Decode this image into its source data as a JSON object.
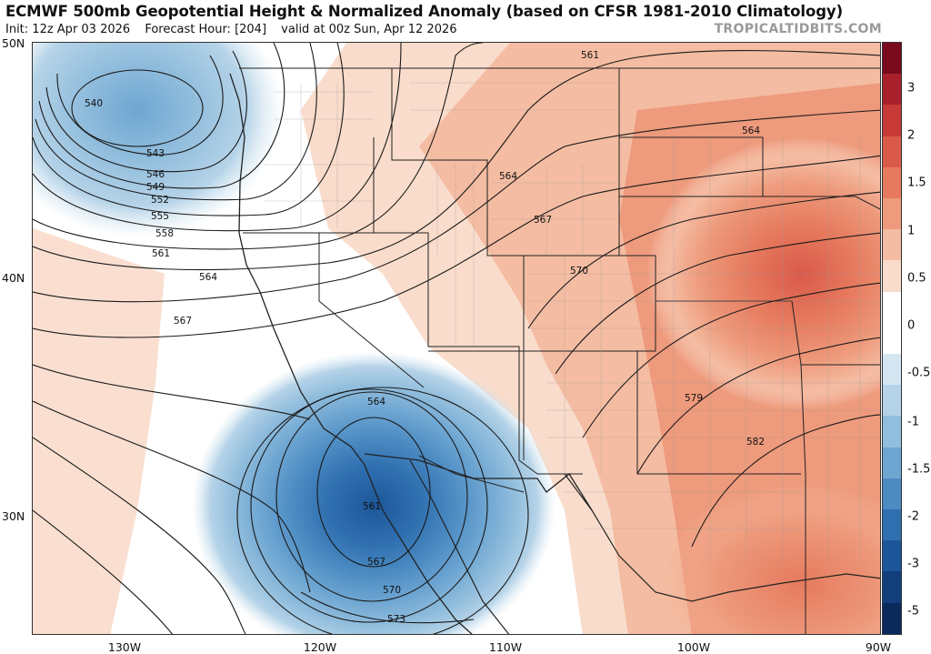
{
  "header": {
    "title": "ECMWF 500mb Geopotential Height & Normalized Anomaly (based on CFSR 1981-2010 Climatology)",
    "init": "Init: 12z Apr 03 2026",
    "forecast_hour": "Forecast Hour: [204]",
    "valid": "valid at 00z Sun, Apr 12 2026",
    "watermark": "TROPICALTIDBITS.COM"
  },
  "axes": {
    "lat_labels": [
      "50N",
      "40N",
      "30N"
    ],
    "lon_labels": [
      "130W",
      "120W",
      "110W",
      "100W",
      "90W"
    ]
  },
  "colorbar": {
    "labels": [
      "3",
      "2",
      "1.5",
      "1",
      "0.5",
      "0",
      "-0.5",
      "-1",
      "-1.5",
      "-2",
      "-3",
      "-5"
    ],
    "colors": [
      "#7a0a1e",
      "#a8202c",
      "#c83a38",
      "#da5a4a",
      "#e67a5e",
      "#ee9a7c",
      "#f4bca2",
      "#f9dccb",
      "#ffffff",
      "#ffffff",
      "#d4e6f1",
      "#b5d3e8",
      "#92bedd",
      "#6ea6d2",
      "#4d8cc3",
      "#2f6fb0",
      "#1c5699",
      "#123f7c",
      "#0b2a5c"
    ]
  },
  "contours": {
    "labels": [
      "540",
      "543",
      "546",
      "549",
      "552",
      "555",
      "558",
      "561",
      "564",
      "567",
      "561",
      "564",
      "564",
      "567",
      "570",
      "579",
      "582",
      "564",
      "561",
      "567",
      "570",
      "573"
    ]
  }
}
